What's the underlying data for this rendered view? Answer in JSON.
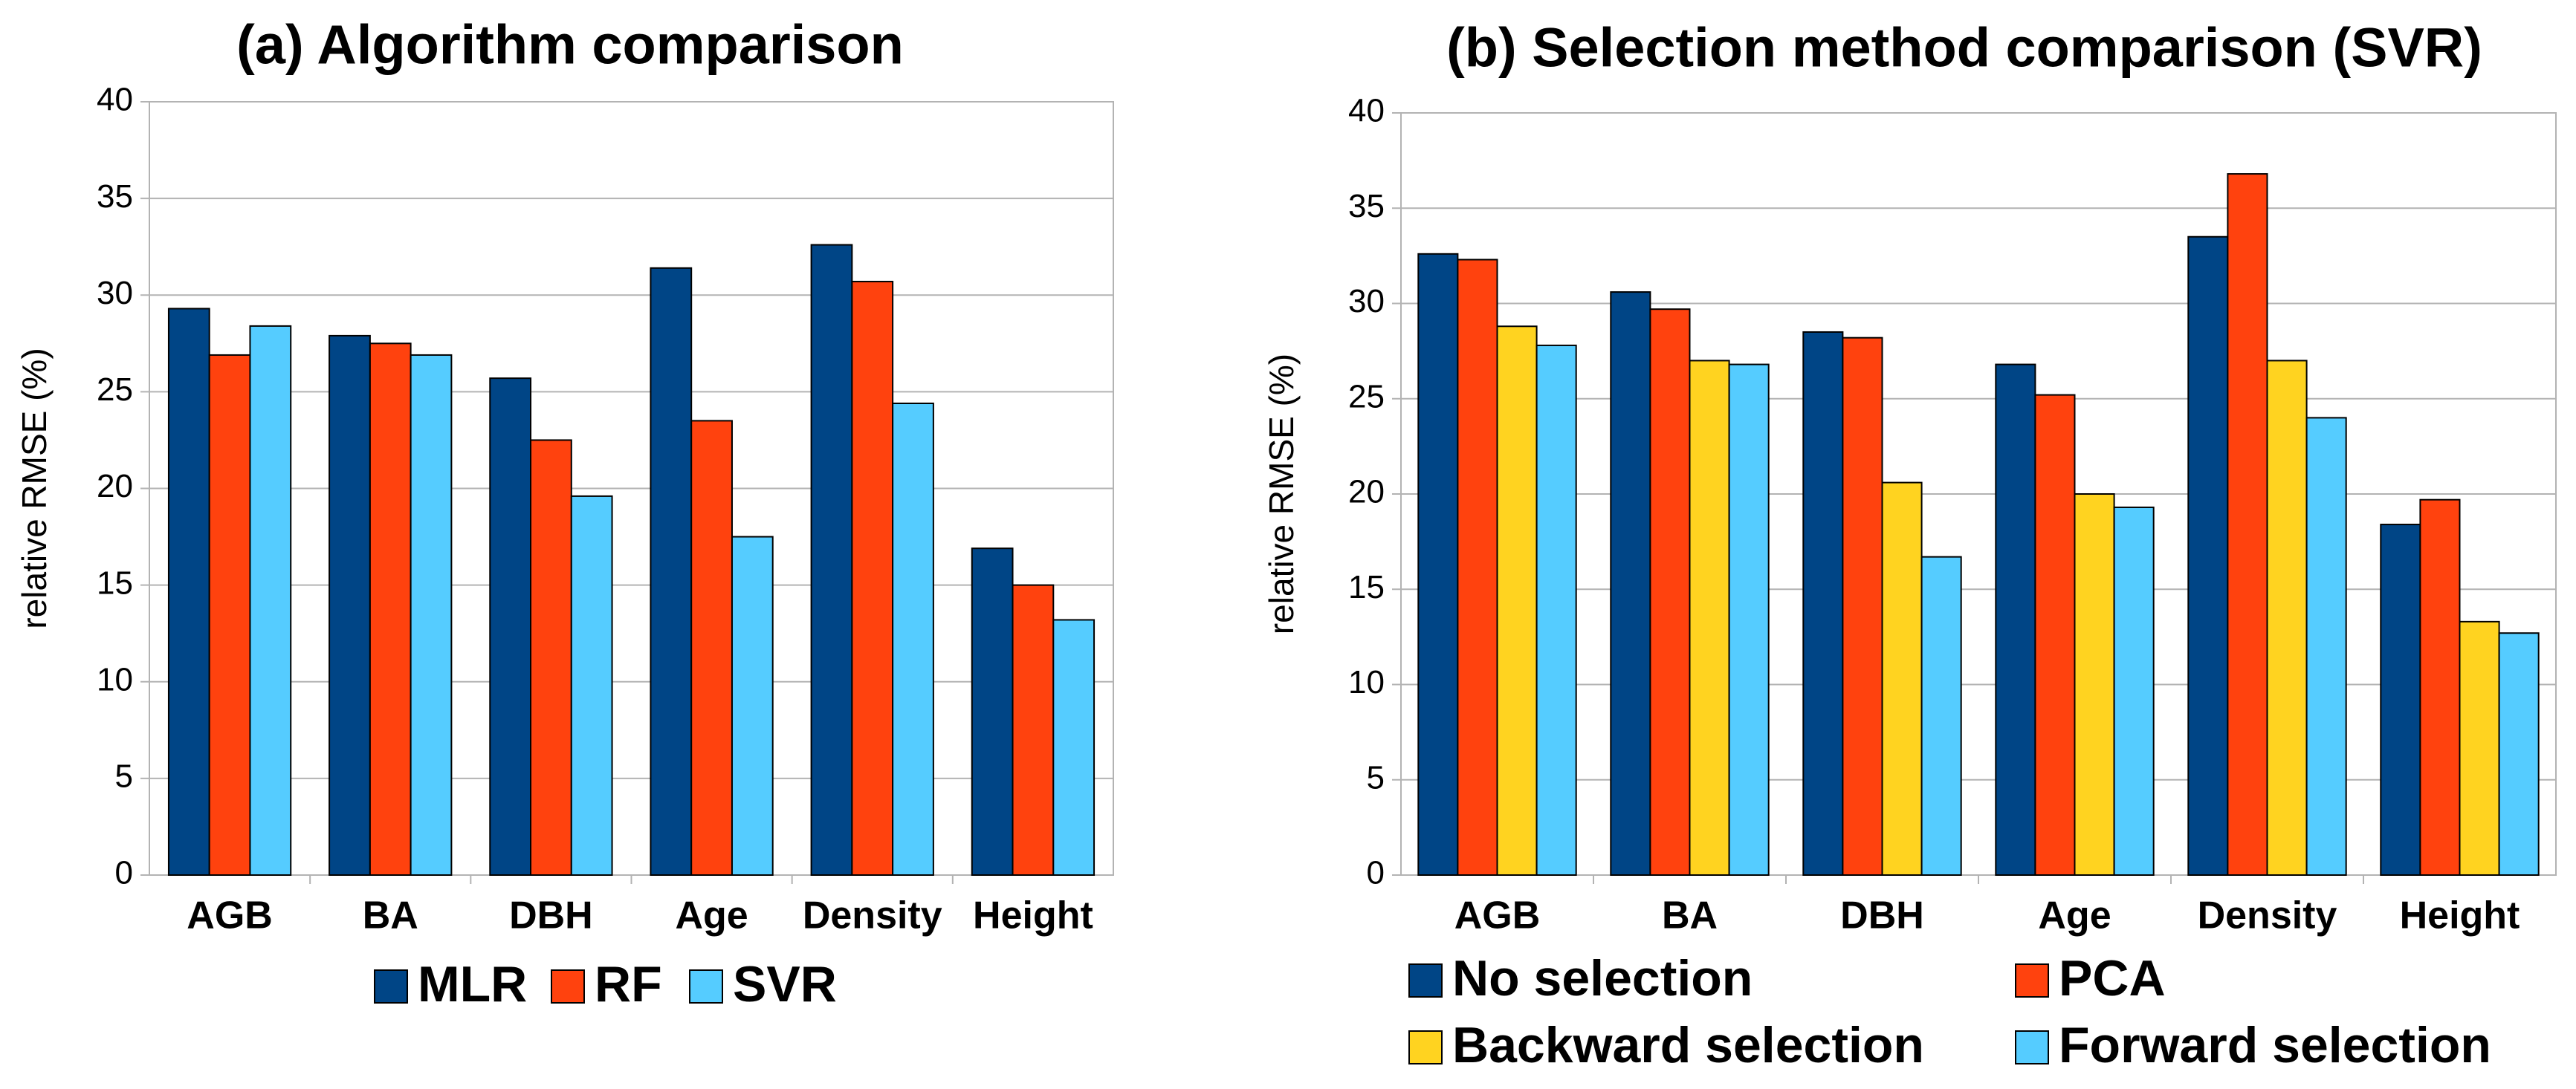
{
  "chart_data": [
    {
      "type": "bar",
      "title": "(a) Algorithm comparison",
      "y_label": "relative RMSE (%)",
      "categories": [
        "AGB",
        "BA",
        "DBH",
        "Age",
        "Density",
        "Height"
      ],
      "series": [
        {
          "name": "MLR",
          "color": "#004586",
          "values": [
            29.3,
            27.9,
            25.7,
            31.4,
            32.6,
            16.9
          ]
        },
        {
          "name": "RF",
          "color": "#ff420e",
          "values": [
            26.9,
            27.5,
            22.5,
            23.5,
            30.7,
            15.0
          ]
        },
        {
          "name": "SVR",
          "color": "#55ccff",
          "values": [
            28.4,
            26.9,
            19.6,
            17.5,
            24.4,
            13.2
          ]
        }
      ],
      "ylim": [
        0,
        40
      ],
      "yticks": [
        0,
        5,
        10,
        15,
        20,
        25,
        30,
        35,
        40
      ],
      "grid": true,
      "legend": "bottom"
    },
    {
      "type": "bar",
      "title": "(b) Selection method comparison (SVR)",
      "y_label": "relative RMSE (%)",
      "categories": [
        "AGB",
        "BA",
        "DBH",
        "Age",
        "Density",
        "Height"
      ],
      "series": [
        {
          "name": "No selection",
          "color": "#004586",
          "values": [
            32.6,
            30.6,
            28.5,
            26.8,
            33.5,
            18.4
          ]
        },
        {
          "name": "PCA",
          "color": "#ff420e",
          "values": [
            32.3,
            29.7,
            28.2,
            25.2,
            36.8,
            19.7
          ]
        },
        {
          "name": "Backward selection",
          "color": "#ffd320",
          "values": [
            28.8,
            27.0,
            20.6,
            20.0,
            27.0,
            13.3
          ]
        },
        {
          "name": "Forward selection",
          "color": "#55ccff",
          "values": [
            27.8,
            26.8,
            16.7,
            19.3,
            24.0,
            12.7
          ]
        }
      ],
      "ylim": [
        0,
        40
      ],
      "yticks": [
        0,
        5,
        10,
        15,
        20,
        25,
        30,
        35,
        40
      ],
      "grid": true,
      "legend": "bottom"
    }
  ]
}
